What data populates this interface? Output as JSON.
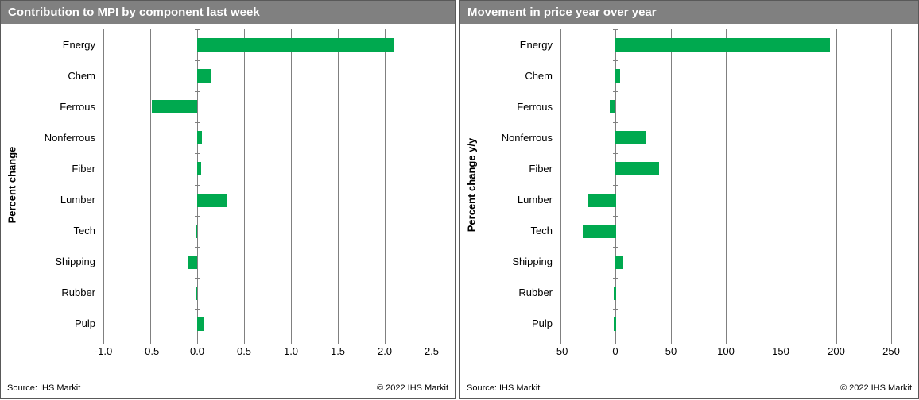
{
  "colors": {
    "bar_green": "#00A94F",
    "title_bar_gray": "#808080",
    "grid_gray": "#808080",
    "title_text_white": "#FFFFFF",
    "text_black": "#000000"
  },
  "footer": {
    "source": "Source: IHS Markit",
    "copyright": "© 2022  IHS Markit"
  },
  "chart_data": [
    {
      "type": "bar",
      "orientation": "horizontal",
      "title": "Contribution to MPI by component last week",
      "ylabel": "Percent change",
      "xlabel": "",
      "categories": [
        "Energy",
        "Chem",
        "Ferrous",
        "Nonferrous",
        "Fiber",
        "Lumber",
        "Tech",
        "Shipping",
        "Rubber",
        "Pulp"
      ],
      "values": [
        2.1,
        0.15,
        -0.48,
        0.05,
        0.04,
        0.32,
        -0.02,
        -0.09,
        -0.02,
        0.08
      ],
      "xlim": [
        -1.0,
        2.5
      ],
      "xticks": [
        -1.0,
        -0.5,
        0.0,
        0.5,
        1.0,
        1.5,
        2.0,
        2.5
      ],
      "xtick_labels": [
        "-1.0",
        "-0.5",
        "0.0",
        "0.5",
        "1.0",
        "1.5",
        "2.0",
        "2.5"
      ],
      "grid": true,
      "legend": "none"
    },
    {
      "type": "bar",
      "orientation": "horizontal",
      "title": "Movement in price year over year",
      "ylabel": "Percent change y/y",
      "xlabel": "",
      "categories": [
        "Energy",
        "Chem",
        "Ferrous",
        "Nonferrous",
        "Fiber",
        "Lumber",
        "Tech",
        "Shipping",
        "Rubber",
        "Pulp"
      ],
      "values": [
        195,
        4,
        -5,
        28,
        40,
        -25,
        -30,
        7,
        -2,
        -2
      ],
      "xlim": [
        -50,
        250
      ],
      "xticks": [
        -50,
        0,
        50,
        100,
        150,
        200,
        250
      ],
      "xtick_labels": [
        "-50",
        "0",
        "50",
        "100",
        "150",
        "200",
        "250"
      ],
      "grid": true,
      "legend": "none"
    }
  ]
}
